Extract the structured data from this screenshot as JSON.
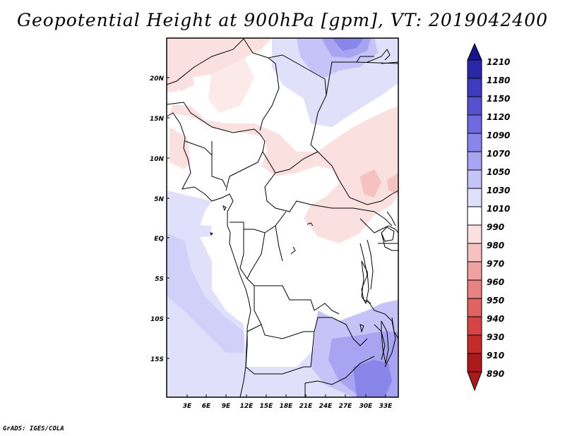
{
  "title": "Geopotential Height at 900hPa [gpm], VT: 2019042400",
  "credit": "GrADS: IGES/COLA",
  "map": {
    "lat_labels": [
      "20N",
      "15N",
      "10N",
      "5N",
      "EQ",
      "5S",
      "10S",
      "15S"
    ],
    "lon_labels": [
      "3E",
      "6E",
      "9E",
      "12E",
      "15E",
      "18E",
      "21E",
      "24E",
      "27E",
      "30E",
      "33E"
    ]
  },
  "colorbar": {
    "labels": [
      "1210",
      "1180",
      "1150",
      "1120",
      "1090",
      "1070",
      "1050",
      "1030",
      "1010",
      "990",
      "980",
      "970",
      "960",
      "950",
      "940",
      "930",
      "910",
      "890"
    ],
    "colors": {
      "c1210": "#17148f",
      "c1180": "#2a27a8",
      "c1150": "#3e3bbd",
      "c1120": "#5551cf",
      "c1090": "#6e6ae0",
      "c1070": "#8986ea",
      "c1050": "#a7a4f1",
      "c1030": "#c5c3f7",
      "c1010": "#e1e0fb",
      "c990": "#ffffff",
      "c980": "#fbe0e0",
      "c970": "#f6c1c1",
      "c960": "#f0a1a1",
      "c950": "#e98282",
      "c940": "#e06262",
      "c930": "#d54545",
      "c910": "#c42c2c",
      "c890": "#ab1a1a"
    }
  }
}
